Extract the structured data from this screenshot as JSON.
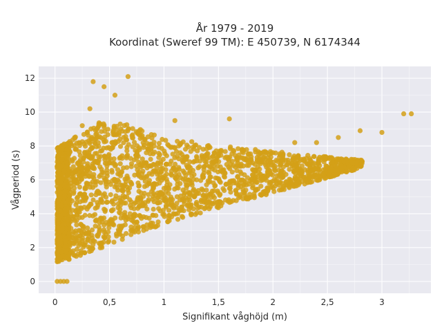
{
  "chart_data": {
    "type": "scatter",
    "title_line1": "År 1979 - 2019",
    "title_line2": "Koordinat (Sweref 99 TM): E 450739, N 6174344",
    "xlabel": "Signifikant våghöjd (m)",
    "ylabel": "Vågperiod (s)",
    "xlim": [
      -0.15,
      3.45
    ],
    "ylim": [
      -0.7,
      12.7
    ],
    "xticks": [
      0,
      0.5,
      1,
      1.5,
      2,
      2.5,
      3
    ],
    "xtick_labels": [
      "0",
      "0,5",
      "1",
      "1,5",
      "2",
      "2,5",
      "3"
    ],
    "yticks": [
      0,
      2,
      4,
      6,
      8,
      10,
      12
    ],
    "ytick_labels": [
      "0",
      "2",
      "4",
      "6",
      "8",
      "10",
      "12"
    ],
    "grid": true,
    "legend": "none",
    "marker_color": "#D4A017",
    "background_color": "#E9E9F0",
    "series": [
      {
        "values": [
          [
            0.02,
            0
          ],
          [
            0.05,
            0
          ],
          [
            0.08,
            0
          ],
          [
            0.11,
            0
          ],
          [
            0.05,
            1.3
          ],
          [
            0.1,
            1.8
          ],
          [
            0.15,
            2.4
          ],
          [
            0.2,
            1.9
          ],
          [
            0.3,
            2.5
          ],
          [
            0.4,
            2.8
          ],
          [
            0.05,
            4.5
          ],
          [
            0.08,
            6.5
          ],
          [
            0.12,
            7.8
          ],
          [
            0.18,
            8.5
          ],
          [
            0.25,
            9.2
          ],
          [
            0.32,
            10.2
          ],
          [
            0.35,
            11.8
          ],
          [
            0.45,
            11.5
          ],
          [
            0.55,
            11.0
          ],
          [
            0.67,
            12.1
          ],
          [
            0.5,
            7.0
          ],
          [
            0.6,
            4.5
          ],
          [
            0.7,
            5.8
          ],
          [
            0.8,
            8.5
          ],
          [
            0.9,
            6.5
          ],
          [
            1.0,
            5.5
          ],
          [
            1.1,
            9.5
          ],
          [
            1.2,
            7.2
          ],
          [
            1.3,
            6.0
          ],
          [
            1.4,
            8.0
          ],
          [
            1.5,
            7.5
          ],
          [
            1.6,
            9.6
          ],
          [
            1.8,
            7.2
          ],
          [
            2.0,
            7.6
          ],
          [
            2.2,
            8.2
          ],
          [
            2.4,
            8.2
          ],
          [
            2.6,
            8.5
          ],
          [
            2.8,
            8.9
          ],
          [
            3.0,
            8.8
          ],
          [
            3.2,
            9.9
          ],
          [
            3.27,
            9.9
          ]
        ]
      }
    ]
  }
}
